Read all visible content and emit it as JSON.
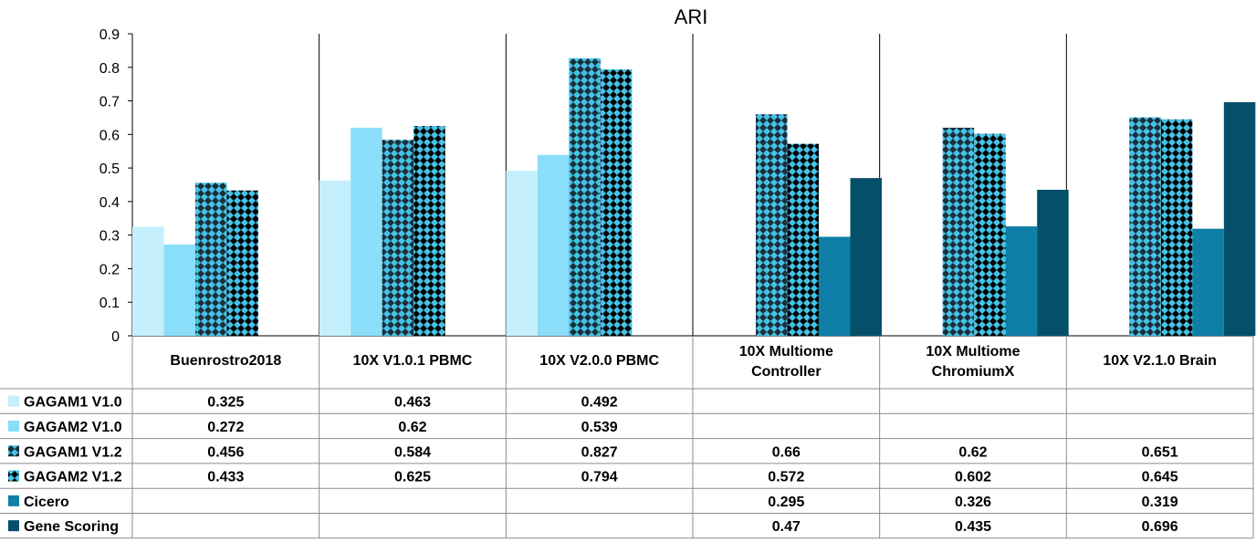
{
  "chart_data": {
    "type": "bar",
    "title": "ARI",
    "categories": [
      [
        "Buenrostro2018"
      ],
      [
        "10X V1.0.1 PBMC"
      ],
      [
        "10X V2.0.0 PBMC"
      ],
      [
        "10X Multiome",
        "Controller"
      ],
      [
        "10X Multiome",
        "ChromiumX"
      ],
      [
        "10X V2.1.0 Brain"
      ]
    ],
    "ylim": [
      0,
      0.9
    ],
    "yticks": [
      "0",
      "0.1",
      "0.2",
      "0.3",
      "0.4",
      "0.5",
      "0.6",
      "0.7",
      "0.8",
      "0.9"
    ],
    "series": [
      {
        "name": "GAGAM1 V1.0",
        "color": "#c5effc",
        "pattern": "none",
        "values": [
          0.325,
          0.463,
          0.492,
          null,
          null,
          null
        ],
        "labels": [
          "0.325",
          "0.463",
          "0.492",
          "",
          "",
          ""
        ]
      },
      {
        "name": "GAGAM2 V1.0",
        "color": "#8adefa",
        "pattern": "none",
        "values": [
          0.272,
          0.62,
          0.539,
          null,
          null,
          null
        ],
        "labels": [
          "0.272",
          "0.62",
          "0.539",
          "",
          "",
          ""
        ]
      },
      {
        "name": "GAGAM1 V1.2",
        "color": "#45c2e6",
        "pattern": "checker-dark",
        "values": [
          0.456,
          0.584,
          0.827,
          0.66,
          0.62,
          0.651
        ],
        "labels": [
          "0.456",
          "0.584",
          "0.827",
          "0.66",
          "0.62",
          "0.651"
        ]
      },
      {
        "name": "GAGAM2 V1.2",
        "color": "#45c2e6",
        "pattern": "checker-black",
        "values": [
          0.433,
          0.625,
          0.794,
          0.572,
          0.602,
          0.645
        ],
        "labels": [
          "0.433",
          "0.625",
          "0.794",
          "0.572",
          "0.602",
          "0.645"
        ]
      },
      {
        "name": "Cicero",
        "color": "#0e7fa6",
        "pattern": "none",
        "values": [
          null,
          null,
          null,
          0.295,
          0.326,
          0.319
        ],
        "labels": [
          "",
          "",
          "",
          "0.295",
          "0.326",
          "0.319"
        ]
      },
      {
        "name": "Gene Scoring",
        "color": "#04506a",
        "pattern": "none",
        "values": [
          null,
          null,
          null,
          0.47,
          0.435,
          0.696
        ],
        "labels": [
          "",
          "",
          "",
          "0.47",
          "0.435",
          "0.696"
        ]
      }
    ],
    "grid": false,
    "legend": "data-table"
  }
}
